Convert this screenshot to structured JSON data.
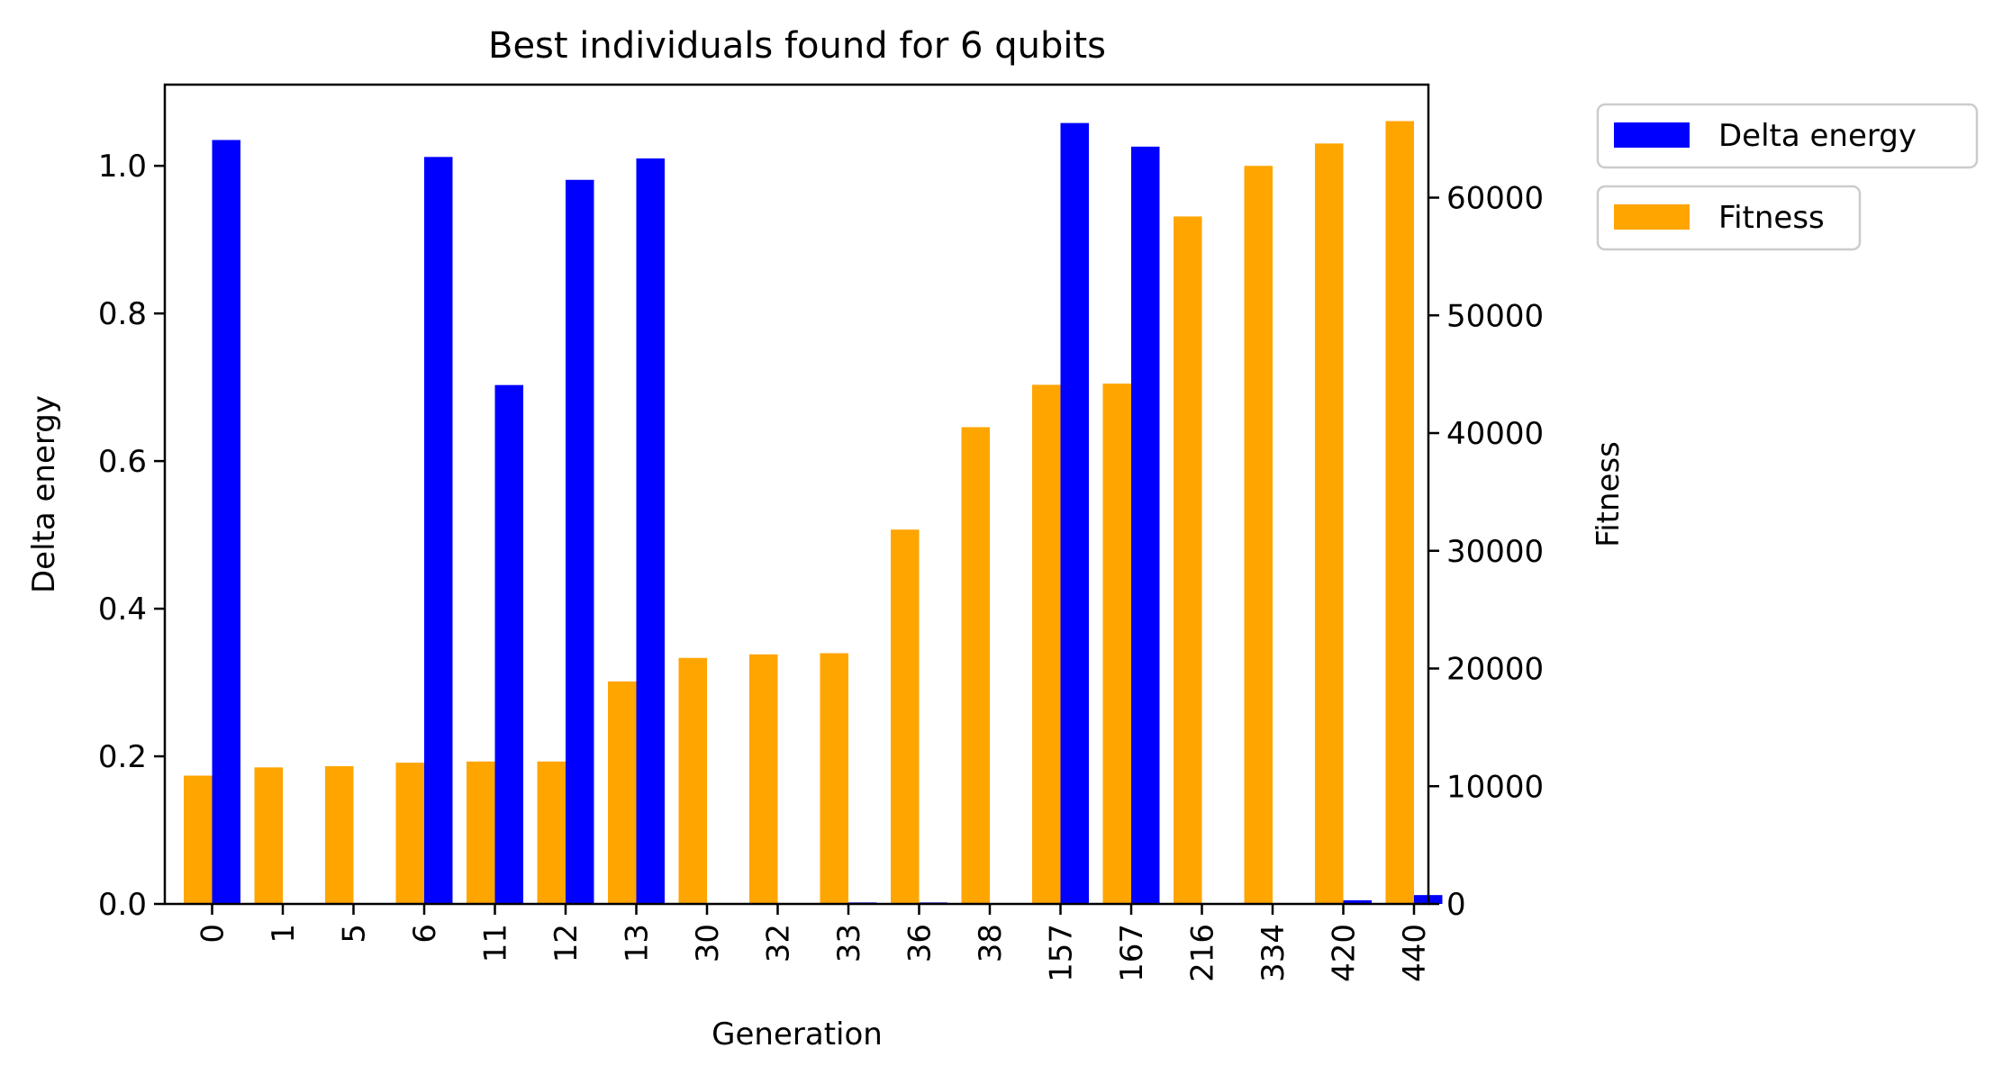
{
  "chart_data": {
    "type": "bar",
    "title": "Best individuals found for 6 qubits",
    "xlabel": "Generation",
    "ylabel": "Delta energy",
    "y2label": "Fitness",
    "categories": [
      "0",
      "1",
      "5",
      "6",
      "11",
      "12",
      "13",
      "30",
      "32",
      "33",
      "36",
      "38",
      "157",
      "167",
      "216",
      "334",
      "420",
      "440"
    ],
    "ylim": [
      0,
      1.11
    ],
    "y2lim": [
      0,
      69600
    ],
    "yticks": [
      "0.0",
      "0.2",
      "0.4",
      "0.6",
      "0.8",
      "1.0"
    ],
    "y2ticks": [
      "0",
      "10000",
      "20000",
      "30000",
      "40000",
      "50000",
      "60000"
    ],
    "legend_placement": "outside-right",
    "series": [
      {
        "name": "Delta energy",
        "axis": "left",
        "color": "#0000ff",
        "values": [
          1.035,
          0.0,
          0.0,
          1.012,
          0.703,
          0.981,
          1.01,
          0.0,
          0.0,
          0.002,
          0.002,
          0.0,
          1.058,
          1.026,
          0.0,
          0.0,
          0.005,
          0.012
        ]
      },
      {
        "name": "Fitness",
        "axis": "right",
        "color": "#ffa500",
        "values": [
          10900,
          11600,
          11700,
          12000,
          12100,
          12100,
          18900,
          20900,
          21200,
          21300,
          31800,
          40500,
          44100,
          44200,
          58400,
          62700,
          64600,
          66500
        ]
      }
    ]
  }
}
